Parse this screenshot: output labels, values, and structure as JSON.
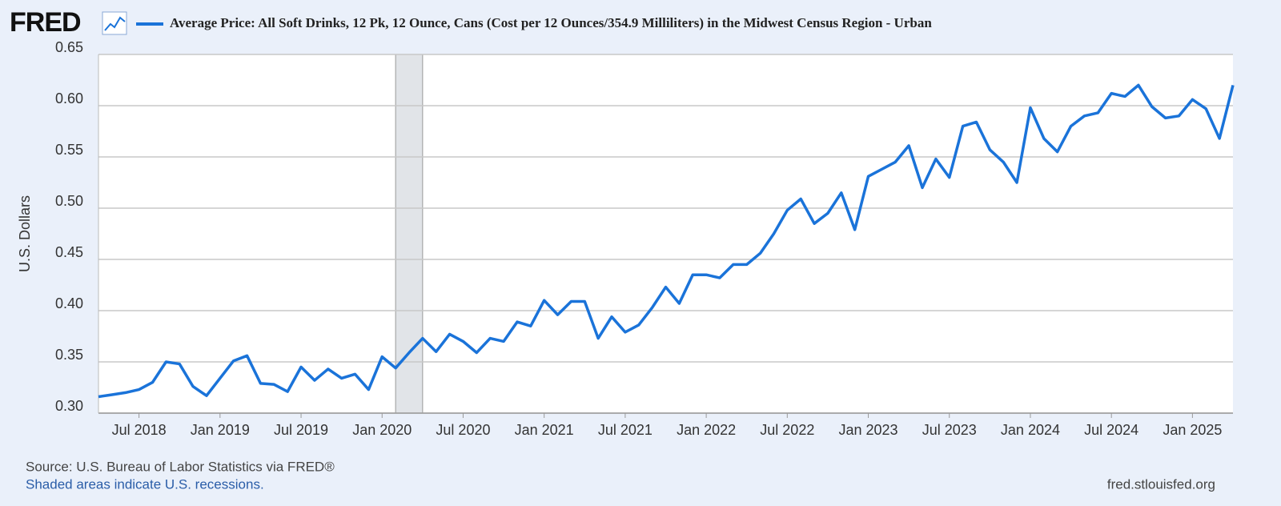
{
  "chart_data": {
    "type": "line",
    "logo": "FRED",
    "y_label": "U.S. Dollars",
    "source": "Source: U.S. Bureau of Labor Statistics via FRED®",
    "note": "Shaded areas indicate U.S. recessions.",
    "site": "fred.stlouisfed.org",
    "x": [
      "2018-04",
      "2018-05",
      "2018-06",
      "2018-07",
      "2018-08",
      "2018-09",
      "2018-10",
      "2018-11",
      "2018-12",
      "2019-01",
      "2019-02",
      "2019-03",
      "2019-04",
      "2019-05",
      "2019-06",
      "2019-07",
      "2019-08",
      "2019-09",
      "2019-10",
      "2019-11",
      "2019-12",
      "2020-01",
      "2020-02",
      "2020-03",
      "2020-04",
      "2020-05",
      "2020-06",
      "2020-07",
      "2020-08",
      "2020-09",
      "2020-10",
      "2020-11",
      "2020-12",
      "2021-01",
      "2021-02",
      "2021-03",
      "2021-04",
      "2021-05",
      "2021-06",
      "2021-07",
      "2021-08",
      "2021-09",
      "2021-10",
      "2021-11",
      "2021-12",
      "2022-01",
      "2022-02",
      "2022-03",
      "2022-04",
      "2022-05",
      "2022-06",
      "2022-07",
      "2022-08",
      "2022-09",
      "2022-10",
      "2022-11",
      "2022-12",
      "2023-01",
      "2023-02",
      "2023-03",
      "2023-04",
      "2023-05",
      "2023-06",
      "2023-07",
      "2023-08",
      "2023-09",
      "2023-10",
      "2023-11",
      "2023-12",
      "2024-01",
      "2024-02",
      "2024-03",
      "2024-04",
      "2024-05",
      "2024-06",
      "2024-07",
      "2024-08",
      "2024-09",
      "2024-10",
      "2024-11",
      "2024-12",
      "2025-01",
      "2025-02",
      "2025-03",
      "2025-04"
    ],
    "series": [
      {
        "name": "Average Price: All Soft Drinks, 12 Pk, 12 Ounce, Cans (Cost per 12 Ounces/354.9 Milliliters) in the Midwest Census Region - Urban",
        "color": "#1a73d9",
        "values": [
          0.316,
          0.318,
          0.32,
          0.323,
          0.33,
          0.35,
          0.348,
          0.326,
          0.317,
          0.334,
          0.351,
          0.356,
          0.329,
          0.328,
          0.321,
          0.345,
          0.332,
          0.343,
          0.334,
          0.338,
          0.323,
          0.355,
          0.344,
          0.359,
          0.373,
          0.36,
          0.377,
          0.37,
          0.359,
          0.373,
          0.37,
          0.389,
          0.385,
          0.41,
          0.396,
          0.409,
          0.409,
          0.373,
          0.394,
          0.379,
          0.386,
          0.403,
          0.423,
          0.407,
          0.435,
          0.435,
          0.432,
          0.445,
          0.445,
          0.456,
          0.475,
          0.498,
          0.509,
          0.485,
          0.495,
          0.515,
          0.479,
          0.531,
          0.538,
          0.545,
          0.561,
          0.52,
          0.548,
          0.53,
          0.58,
          0.584,
          0.557,
          0.545,
          0.525,
          0.598,
          0.568,
          0.555,
          0.58,
          0.59,
          0.593,
          0.612,
          0.609,
          0.62,
          0.599,
          0.588,
          0.59,
          0.606,
          0.597,
          0.568,
          0.62
        ]
      }
    ],
    "xlim": [
      "2018-04",
      "2025-04"
    ],
    "xticks": [
      {
        "value": "2018-07",
        "label": "Jul 2018"
      },
      {
        "value": "2019-01",
        "label": "Jan 2019"
      },
      {
        "value": "2019-07",
        "label": "Jul 2019"
      },
      {
        "value": "2020-01",
        "label": "Jan 2020"
      },
      {
        "value": "2020-07",
        "label": "Jul 2020"
      },
      {
        "value": "2021-01",
        "label": "Jan 2021"
      },
      {
        "value": "2021-07",
        "label": "Jul 2021"
      },
      {
        "value": "2022-01",
        "label": "Jan 2022"
      },
      {
        "value": "2022-07",
        "label": "Jul 2022"
      },
      {
        "value": "2023-01",
        "label": "Jan 2023"
      },
      {
        "value": "2023-07",
        "label": "Jul 2023"
      },
      {
        "value": "2024-01",
        "label": "Jan 2024"
      },
      {
        "value": "2024-07",
        "label": "Jul 2024"
      },
      {
        "value": "2025-01",
        "label": "Jan 2025"
      }
    ],
    "ylim": [
      0.3,
      0.65
    ],
    "yticks": [
      {
        "value": 0.3,
        "label": "0.30"
      },
      {
        "value": 0.35,
        "label": "0.35"
      },
      {
        "value": 0.4,
        "label": "0.40"
      },
      {
        "value": 0.45,
        "label": "0.45"
      },
      {
        "value": 0.5,
        "label": "0.50"
      },
      {
        "value": 0.55,
        "label": "0.55"
      },
      {
        "value": 0.6,
        "label": "0.60"
      },
      {
        "value": 0.65,
        "label": "0.65"
      }
    ],
    "recession": [
      "2020-02",
      "2020-04"
    ],
    "grid": true
  }
}
